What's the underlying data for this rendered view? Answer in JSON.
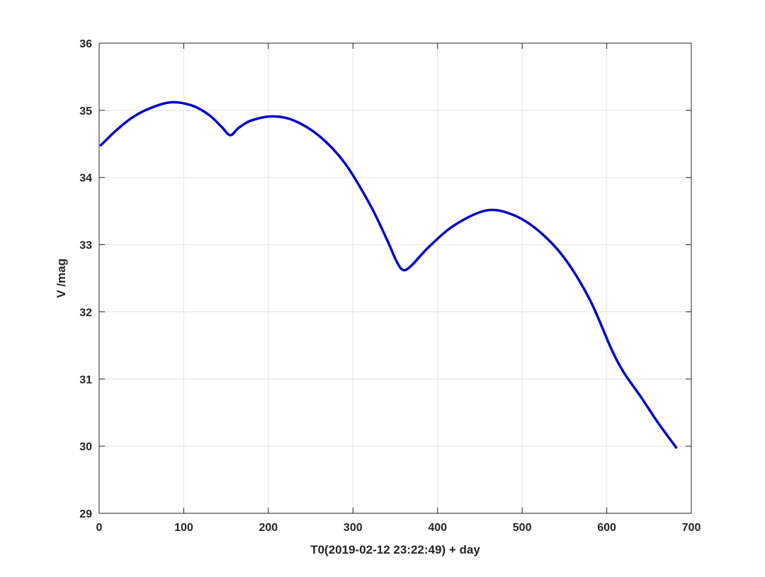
{
  "chart_data": {
    "type": "line",
    "title": "",
    "xlabel": "T0(2019-02-12 23:22:49) + day",
    "ylabel": "V /mag",
    "xlim": [
      0,
      700
    ],
    "ylim": [
      29,
      36
    ],
    "xticks": [
      0,
      100,
      200,
      300,
      400,
      500,
      600,
      700
    ],
    "yticks": [
      29,
      30,
      31,
      32,
      33,
      34,
      35,
      36
    ],
    "grid": true,
    "legend": "none",
    "series": [
      {
        "color": "#0000cc",
        "x": [
          2,
          20,
          40,
          60,
          85,
          110,
          130,
          145,
          155,
          165,
          180,
          205,
          230,
          260,
          290,
          320,
          340,
          352,
          360,
          370,
          390,
          420,
          458,
          490,
          520,
          550,
          580,
          605,
          620,
          640,
          660,
          682
        ],
        "y": [
          34.48,
          34.7,
          34.9,
          35.03,
          35.12,
          35.07,
          34.93,
          34.75,
          34.63,
          34.74,
          34.85,
          34.91,
          34.85,
          34.62,
          34.22,
          33.6,
          33.08,
          32.74,
          32.62,
          32.7,
          32.97,
          33.29,
          33.51,
          33.44,
          33.2,
          32.8,
          32.18,
          31.46,
          31.1,
          30.74,
          30.36,
          29.98
        ]
      }
    ]
  }
}
